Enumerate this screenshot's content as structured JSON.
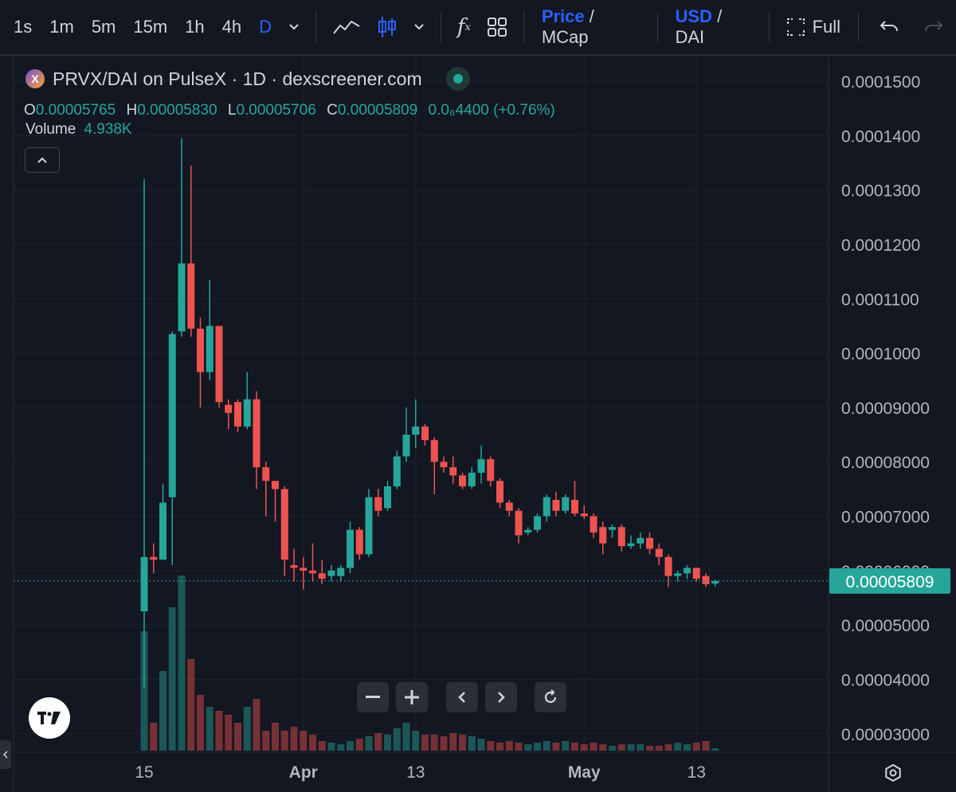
{
  "toolbar": {
    "timeframes": [
      "1s",
      "1m",
      "5m",
      "15m",
      "1h",
      "4h",
      "D"
    ],
    "active_timeframe": "D",
    "price_label": "Price",
    "mcap_label": "MCap",
    "usd_label": "USD",
    "dai_label": "DAI",
    "slash": "/",
    "full_label": "Full"
  },
  "legend": {
    "title": "PRVX/DAI on PulseX · 1D · dexscreener.com",
    "o_label": "O",
    "o_value": "0.00005765",
    "h_label": "H",
    "h_value": "0.00005830",
    "l_label": "L",
    "l_value": "0.00005706",
    "c_label": "C",
    "c_value": "0.00005809",
    "change": "0.0₆4400 (+0.76%)",
    "volume_label": "Volume",
    "volume_value": "4.938K"
  },
  "colors": {
    "up": "#26a69a",
    "down": "#ef5350",
    "background": "#131722",
    "accent": "#2962ff"
  },
  "chart_data": {
    "type": "candlestick",
    "y_ticks": [
      "0.0001500",
      "0.0001400",
      "0.0001300",
      "0.0001200",
      "0.0001100",
      "0.0001000",
      "0.00009000",
      "0.00008000",
      "0.00007000",
      "0.00006000",
      "0.00005000",
      "0.00004000",
      "0.00003000"
    ],
    "y_range": [
      2.85e-05,
      0.0001525
    ],
    "x_labels": [
      "15",
      "Apr",
      "13",
      "May",
      "13"
    ],
    "x_label_days": [
      0,
      17,
      29,
      47,
      59
    ],
    "last_price": "0.00005809",
    "candles": [
      {
        "d": 0,
        "o": 5.25e-05,
        "h": 0.000132,
        "l": 3.85e-05,
        "c": 6.25e-05
      },
      {
        "d": 1,
        "o": 6.25e-05,
        "h": 6.5e-05,
        "l": 5.95e-05,
        "c": 6.2e-05
      },
      {
        "d": 2,
        "o": 6.2e-05,
        "h": 7.6e-05,
        "l": 6.2e-05,
        "c": 7.25e-05
      },
      {
        "d": 3,
        "o": 7.35e-05,
        "h": 0.000104,
        "l": 6.1e-05,
        "c": 0.0001035
      },
      {
        "d": 4,
        "o": 0.000104,
        "h": 0.0001395,
        "l": 0.000103,
        "c": 0.0001165
      },
      {
        "d": 5,
        "o": 0.0001165,
        "h": 0.0001345,
        "l": 0.000103,
        "c": 0.0001045
      },
      {
        "d": 6,
        "o": 0.0001045,
        "h": 0.0001065,
        "l": 9e-05,
        "c": 9.65e-05
      },
      {
        "d": 7,
        "o": 9.65e-05,
        "h": 0.0001135,
        "l": 9.5e-05,
        "c": 0.000105
      },
      {
        "d": 8,
        "o": 0.000105,
        "h": 0.000105,
        "l": 9e-05,
        "c": 9.1e-05
      },
      {
        "d": 9,
        "o": 9.05e-05,
        "h": 9.15e-05,
        "l": 8.6e-05,
        "c": 8.9e-05
      },
      {
        "d": 10,
        "o": 9.1e-05,
        "h": 9.15e-05,
        "l": 8.55e-05,
        "c": 8.65e-05
      },
      {
        "d": 11,
        "o": 8.65e-05,
        "h": 9.65e-05,
        "l": 8.6e-05,
        "c": 9.15e-05
      },
      {
        "d": 12,
        "o": 9.15e-05,
        "h": 9.3e-05,
        "l": 7.5e-05,
        "c": 7.9e-05
      },
      {
        "d": 13,
        "o": 7.9e-05,
        "h": 8e-05,
        "l": 7e-05,
        "c": 7.65e-05
      },
      {
        "d": 14,
        "o": 7.65e-05,
        "h": 7.65e-05,
        "l": 6.9e-05,
        "c": 7.5e-05
      },
      {
        "d": 15,
        "o": 7.5e-05,
        "h": 7.55e-05,
        "l": 5.9e-05,
        "c": 6.2e-05
      },
      {
        "d": 16,
        "o": 6.1e-05,
        "h": 6.4e-05,
        "l": 5.8e-05,
        "c": 6.05e-05
      },
      {
        "d": 17,
        "o": 6.05e-05,
        "h": 6.25e-05,
        "l": 5.65e-05,
        "c": 6e-05
      },
      {
        "d": 18,
        "o": 6e-05,
        "h": 6.5e-05,
        "l": 5.8e-05,
        "c": 5.95e-05
      },
      {
        "d": 19,
        "o": 5.95e-05,
        "h": 6.2e-05,
        "l": 5.75e-05,
        "c": 5.85e-05
      },
      {
        "d": 20,
        "o": 5.9e-05,
        "h": 6.1e-05,
        "l": 5.8e-05,
        "c": 6e-05
      },
      {
        "d": 21,
        "o": 5.9e-05,
        "h": 6.1e-05,
        "l": 5.8e-05,
        "c": 6.05e-05
      },
      {
        "d": 22,
        "o": 6.05e-05,
        "h": 6.9e-05,
        "l": 5.95e-05,
        "c": 6.75e-05
      },
      {
        "d": 23,
        "o": 6.75e-05,
        "h": 6.8e-05,
        "l": 6.2e-05,
        "c": 6.3e-05
      },
      {
        "d": 24,
        "o": 6.3e-05,
        "h": 7.5e-05,
        "l": 6.25e-05,
        "c": 7.35e-05
      },
      {
        "d": 25,
        "o": 7.35e-05,
        "h": 7.5e-05,
        "l": 7e-05,
        "c": 7.1e-05
      },
      {
        "d": 26,
        "o": 7.15e-05,
        "h": 7.65e-05,
        "l": 7.1e-05,
        "c": 7.55e-05
      },
      {
        "d": 27,
        "o": 7.55e-05,
        "h": 8.2e-05,
        "l": 7.5e-05,
        "c": 8.1e-05
      },
      {
        "d": 28,
        "o": 8.1e-05,
        "h": 9e-05,
        "l": 8e-05,
        "c": 8.5e-05
      },
      {
        "d": 29,
        "o": 8.5e-05,
        "h": 9.15e-05,
        "l": 8.25e-05,
        "c": 8.65e-05
      },
      {
        "d": 30,
        "o": 8.65e-05,
        "h": 8.7e-05,
        "l": 8.3e-05,
        "c": 8.4e-05
      },
      {
        "d": 31,
        "o": 8.4e-05,
        "h": 8.45e-05,
        "l": 7.4e-05,
        "c": 8e-05
      },
      {
        "d": 32,
        "o": 8e-05,
        "h": 8.1e-05,
        "l": 7.8e-05,
        "c": 7.9e-05
      },
      {
        "d": 33,
        "o": 7.9e-05,
        "h": 8.1e-05,
        "l": 7.6e-05,
        "c": 7.75e-05
      },
      {
        "d": 34,
        "o": 7.75e-05,
        "h": 7.8e-05,
        "l": 7.5e-05,
        "c": 7.55e-05
      },
      {
        "d": 35,
        "o": 7.55e-05,
        "h": 7.9e-05,
        "l": 7.5e-05,
        "c": 7.8e-05
      },
      {
        "d": 36,
        "o": 7.8e-05,
        "h": 8.3e-05,
        "l": 7.6e-05,
        "c": 8.05e-05
      },
      {
        "d": 37,
        "o": 8.05e-05,
        "h": 8.1e-05,
        "l": 7.55e-05,
        "c": 7.65e-05
      },
      {
        "d": 38,
        "o": 7.65e-05,
        "h": 7.7e-05,
        "l": 7.15e-05,
        "c": 7.25e-05
      },
      {
        "d": 39,
        "o": 7.25e-05,
        "h": 7.3e-05,
        "l": 7e-05,
        "c": 7.1e-05
      },
      {
        "d": 40,
        "o": 7.1e-05,
        "h": 7.15e-05,
        "l": 6.5e-05,
        "c": 6.65e-05
      },
      {
        "d": 41,
        "o": 6.7e-05,
        "h": 6.8e-05,
        "l": 6.65e-05,
        "c": 6.75e-05
      },
      {
        "d": 42,
        "o": 6.75e-05,
        "h": 7.05e-05,
        "l": 6.7e-05,
        "c": 7e-05
      },
      {
        "d": 43,
        "o": 7e-05,
        "h": 7.4e-05,
        "l": 6.9e-05,
        "c": 7.35e-05
      },
      {
        "d": 44,
        "o": 7.3e-05,
        "h": 7.45e-05,
        "l": 7e-05,
        "c": 7.1e-05
      },
      {
        "d": 45,
        "o": 7.1e-05,
        "h": 7.4e-05,
        "l": 7.05e-05,
        "c": 7.35e-05
      },
      {
        "d": 46,
        "o": 7.3e-05,
        "h": 7.65e-05,
        "l": 7e-05,
        "c": 7.05e-05
      },
      {
        "d": 47,
        "o": 7.05e-05,
        "h": 7.2e-05,
        "l": 6.95e-05,
        "c": 7e-05
      },
      {
        "d": 48,
        "o": 7e-05,
        "h": 7.05e-05,
        "l": 6.6e-05,
        "c": 6.7e-05
      },
      {
        "d": 49,
        "o": 6.8e-05,
        "h": 6.9e-05,
        "l": 6.3e-05,
        "c": 6.5e-05
      },
      {
        "d": 50,
        "o": 6.75e-05,
        "h": 6.85e-05,
        "l": 6.6e-05,
        "c": 6.8e-05
      },
      {
        "d": 51,
        "o": 6.8e-05,
        "h": 6.85e-05,
        "l": 6.35e-05,
        "c": 6.45e-05
      },
      {
        "d": 52,
        "o": 6.45e-05,
        "h": 6.65e-05,
        "l": 6.4e-05,
        "c": 6.5e-05
      },
      {
        "d": 53,
        "o": 6.5e-05,
        "h": 6.7e-05,
        "l": 6.4e-05,
        "c": 6.6e-05
      },
      {
        "d": 54,
        "o": 6.6e-05,
        "h": 6.7e-05,
        "l": 6.3e-05,
        "c": 6.4e-05
      },
      {
        "d": 55,
        "o": 6.4e-05,
        "h": 6.5e-05,
        "l": 6.1e-05,
        "c": 6.25e-05
      },
      {
        "d": 56,
        "o": 6.25e-05,
        "h": 6.3e-05,
        "l": 5.7e-05,
        "c": 5.9e-05
      },
      {
        "d": 57,
        "o": 5.9e-05,
        "h": 6e-05,
        "l": 5.8e-05,
        "c": 5.95e-05
      },
      {
        "d": 58,
        "o": 5.95e-05,
        "h": 6.1e-05,
        "l": 5.85e-05,
        "c": 6.05e-05
      },
      {
        "d": 59,
        "o": 6.05e-05,
        "h": 6.05e-05,
        "l": 5.8e-05,
        "c": 5.85e-05
      },
      {
        "d": 60,
        "o": 5.9e-05,
        "h": 5.95e-05,
        "l": 5.7e-05,
        "c": 5.75e-05
      },
      {
        "d": 61,
        "o": 5.76e-05,
        "h": 5.83e-05,
        "l": 5.71e-05,
        "c": 5.81e-05
      }
    ],
    "volumes": [
      150,
      35,
      100,
      180,
      220,
      115,
      70,
      55,
      50,
      45,
      35,
      55,
      65,
      25,
      35,
      25,
      30,
      25,
      20,
      12,
      10,
      8,
      12,
      15,
      18,
      22,
      20,
      28,
      35,
      25,
      20,
      20,
      18,
      22,
      20,
      18,
      15,
      12,
      10,
      12,
      10,
      8,
      10,
      12,
      10,
      12,
      10,
      8,
      10,
      8,
      6,
      8,
      8,
      8,
      6,
      6,
      8,
      10,
      8,
      10,
      12,
      3
    ]
  }
}
